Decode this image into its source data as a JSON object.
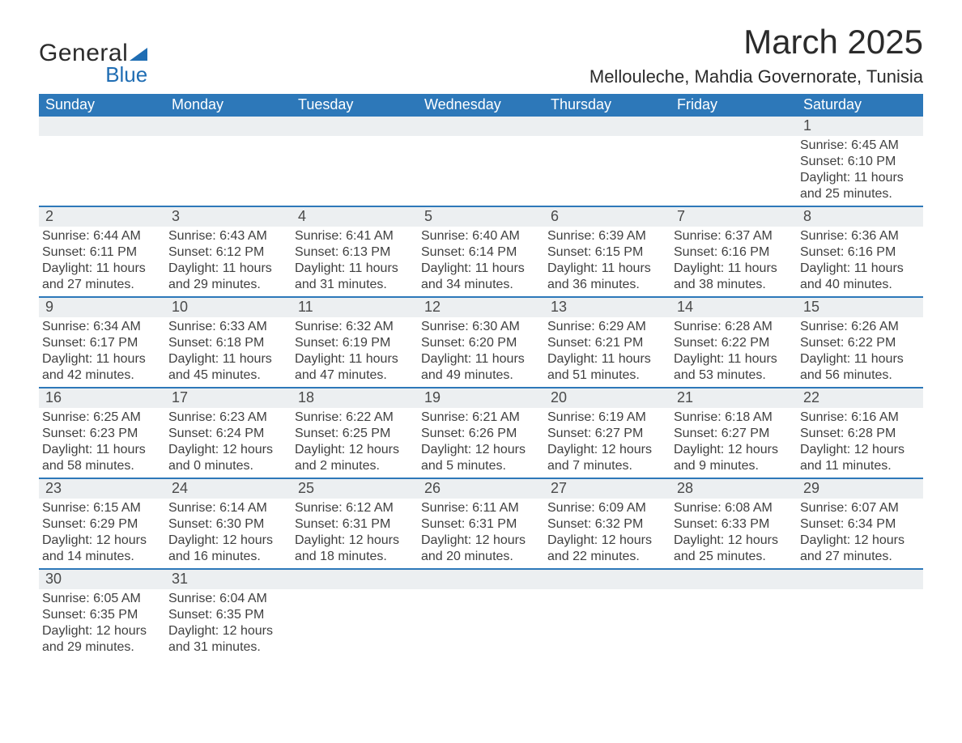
{
  "logo": {
    "text1": "General",
    "text2": "Blue"
  },
  "header": {
    "month_title": "March 2025",
    "location": "Mellouleche, Mahdia Governorate, Tunisia"
  },
  "colors": {
    "header_bg": "#2d78b9",
    "header_text": "#ffffff",
    "row_separator": "#2d78b9",
    "daynum_bg": "#eceff1",
    "body_text": "#404040",
    "logo_blue": "#1f6db3"
  },
  "typography": {
    "month_title_fontsize": 42,
    "location_fontsize": 22,
    "weekday_fontsize": 18,
    "body_fontsize": 16
  },
  "weekdays": [
    "Sunday",
    "Monday",
    "Tuesday",
    "Wednesday",
    "Thursday",
    "Friday",
    "Saturday"
  ],
  "labels": {
    "sunrise": "Sunrise:",
    "sunset": "Sunset:",
    "daylight": "Daylight:"
  },
  "days": [
    {
      "n": 1,
      "sunrise": "6:45 AM",
      "sunset": "6:10 PM",
      "daylight_h": 11,
      "daylight_m": 25
    },
    {
      "n": 2,
      "sunrise": "6:44 AM",
      "sunset": "6:11 PM",
      "daylight_h": 11,
      "daylight_m": 27
    },
    {
      "n": 3,
      "sunrise": "6:43 AM",
      "sunset": "6:12 PM",
      "daylight_h": 11,
      "daylight_m": 29
    },
    {
      "n": 4,
      "sunrise": "6:41 AM",
      "sunset": "6:13 PM",
      "daylight_h": 11,
      "daylight_m": 31
    },
    {
      "n": 5,
      "sunrise": "6:40 AM",
      "sunset": "6:14 PM",
      "daylight_h": 11,
      "daylight_m": 34
    },
    {
      "n": 6,
      "sunrise": "6:39 AM",
      "sunset": "6:15 PM",
      "daylight_h": 11,
      "daylight_m": 36
    },
    {
      "n": 7,
      "sunrise": "6:37 AM",
      "sunset": "6:16 PM",
      "daylight_h": 11,
      "daylight_m": 38
    },
    {
      "n": 8,
      "sunrise": "6:36 AM",
      "sunset": "6:16 PM",
      "daylight_h": 11,
      "daylight_m": 40
    },
    {
      "n": 9,
      "sunrise": "6:34 AM",
      "sunset": "6:17 PM",
      "daylight_h": 11,
      "daylight_m": 42
    },
    {
      "n": 10,
      "sunrise": "6:33 AM",
      "sunset": "6:18 PM",
      "daylight_h": 11,
      "daylight_m": 45
    },
    {
      "n": 11,
      "sunrise": "6:32 AM",
      "sunset": "6:19 PM",
      "daylight_h": 11,
      "daylight_m": 47
    },
    {
      "n": 12,
      "sunrise": "6:30 AM",
      "sunset": "6:20 PM",
      "daylight_h": 11,
      "daylight_m": 49
    },
    {
      "n": 13,
      "sunrise": "6:29 AM",
      "sunset": "6:21 PM",
      "daylight_h": 11,
      "daylight_m": 51
    },
    {
      "n": 14,
      "sunrise": "6:28 AM",
      "sunset": "6:22 PM",
      "daylight_h": 11,
      "daylight_m": 53
    },
    {
      "n": 15,
      "sunrise": "6:26 AM",
      "sunset": "6:22 PM",
      "daylight_h": 11,
      "daylight_m": 56
    },
    {
      "n": 16,
      "sunrise": "6:25 AM",
      "sunset": "6:23 PM",
      "daylight_h": 11,
      "daylight_m": 58
    },
    {
      "n": 17,
      "sunrise": "6:23 AM",
      "sunset": "6:24 PM",
      "daylight_h": 12,
      "daylight_m": 0
    },
    {
      "n": 18,
      "sunrise": "6:22 AM",
      "sunset": "6:25 PM",
      "daylight_h": 12,
      "daylight_m": 2
    },
    {
      "n": 19,
      "sunrise": "6:21 AM",
      "sunset": "6:26 PM",
      "daylight_h": 12,
      "daylight_m": 5
    },
    {
      "n": 20,
      "sunrise": "6:19 AM",
      "sunset": "6:27 PM",
      "daylight_h": 12,
      "daylight_m": 7
    },
    {
      "n": 21,
      "sunrise": "6:18 AM",
      "sunset": "6:27 PM",
      "daylight_h": 12,
      "daylight_m": 9
    },
    {
      "n": 22,
      "sunrise": "6:16 AM",
      "sunset": "6:28 PM",
      "daylight_h": 12,
      "daylight_m": 11
    },
    {
      "n": 23,
      "sunrise": "6:15 AM",
      "sunset": "6:29 PM",
      "daylight_h": 12,
      "daylight_m": 14
    },
    {
      "n": 24,
      "sunrise": "6:14 AM",
      "sunset": "6:30 PM",
      "daylight_h": 12,
      "daylight_m": 16
    },
    {
      "n": 25,
      "sunrise": "6:12 AM",
      "sunset": "6:31 PM",
      "daylight_h": 12,
      "daylight_m": 18
    },
    {
      "n": 26,
      "sunrise": "6:11 AM",
      "sunset": "6:31 PM",
      "daylight_h": 12,
      "daylight_m": 20
    },
    {
      "n": 27,
      "sunrise": "6:09 AM",
      "sunset": "6:32 PM",
      "daylight_h": 12,
      "daylight_m": 22
    },
    {
      "n": 28,
      "sunrise": "6:08 AM",
      "sunset": "6:33 PM",
      "daylight_h": 12,
      "daylight_m": 25
    },
    {
      "n": 29,
      "sunrise": "6:07 AM",
      "sunset": "6:34 PM",
      "daylight_h": 12,
      "daylight_m": 27
    },
    {
      "n": 30,
      "sunrise": "6:05 AM",
      "sunset": "6:35 PM",
      "daylight_h": 12,
      "daylight_m": 29
    },
    {
      "n": 31,
      "sunrise": "6:04 AM",
      "sunset": "6:35 PM",
      "daylight_h": 12,
      "daylight_m": 31
    }
  ],
  "layout": {
    "first_day_column_index": 6,
    "columns": 7
  }
}
